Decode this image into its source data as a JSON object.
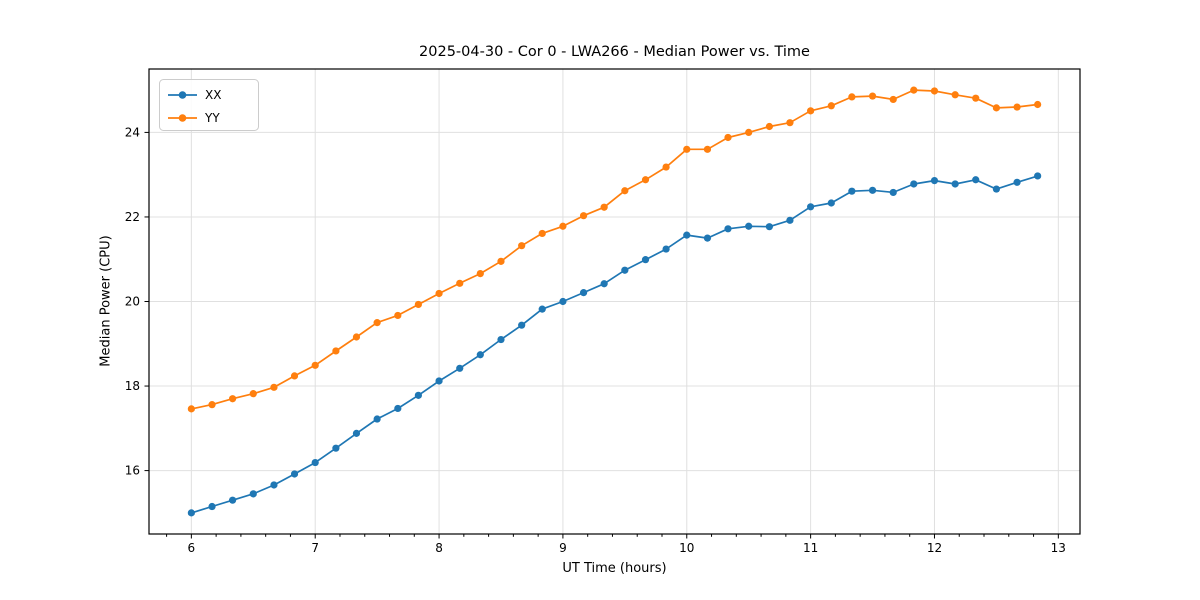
{
  "chart_data": {
    "type": "line",
    "title": "2025-04-30 - Cor 0 - LWA266 - Median Power vs. Time",
    "xlabel": "UT Time (hours)",
    "ylabel": "Median Power (CPU)",
    "xlim": [
      5.658,
      13.175
    ],
    "ylim": [
      14.5,
      25.5
    ],
    "xticks": [
      6,
      7,
      8,
      9,
      10,
      11,
      12,
      13
    ],
    "yticks": [
      16,
      18,
      20,
      22,
      24
    ],
    "x_minor_step": 0.2,
    "grid": true,
    "grid_color": "#e0e0e0",
    "spine_color": "#000000",
    "background": "#ffffff",
    "legend_position": "upper-left",
    "x": [
      6.0,
      6.167,
      6.333,
      6.5,
      6.667,
      6.833,
      7.0,
      7.167,
      7.333,
      7.5,
      7.667,
      7.833,
      8.0,
      8.167,
      8.333,
      8.5,
      8.667,
      8.833,
      9.0,
      9.167,
      9.333,
      9.5,
      9.667,
      9.833,
      10.0,
      10.167,
      10.333,
      10.5,
      10.667,
      10.833,
      11.0,
      11.167,
      11.333,
      11.5,
      11.667,
      11.833,
      12.0,
      12.167,
      12.333,
      12.5,
      12.667,
      12.833
    ],
    "series": [
      {
        "name": "XX",
        "color": "#1f77b4",
        "values": [
          15.0,
          15.15,
          15.3,
          15.45,
          15.66,
          15.92,
          16.19,
          16.53,
          16.88,
          17.22,
          17.47,
          17.78,
          18.12,
          18.42,
          18.74,
          19.1,
          19.44,
          19.82,
          20.0,
          20.21,
          20.42,
          20.74,
          20.99,
          21.24,
          21.57,
          21.5,
          21.72,
          21.78,
          21.77,
          21.92,
          22.24,
          22.33,
          22.61,
          22.63,
          22.58,
          22.78,
          22.86,
          22.78,
          22.88,
          22.66,
          22.82,
          22.97
        ]
      },
      {
        "name": "YY",
        "color": "#ff7f0e",
        "values": [
          17.46,
          17.56,
          17.7,
          17.82,
          17.97,
          18.24,
          18.49,
          18.83,
          19.16,
          19.5,
          19.67,
          19.93,
          20.19,
          20.43,
          20.66,
          20.95,
          21.32,
          21.61,
          21.78,
          22.03,
          22.23,
          22.62,
          22.88,
          23.18,
          23.6,
          23.6,
          23.88,
          24.0,
          24.14,
          24.23,
          24.51,
          24.63,
          24.84,
          24.86,
          24.78,
          25.0,
          24.98,
          24.89,
          24.81,
          24.58,
          24.6,
          24.66
        ]
      }
    ]
  }
}
